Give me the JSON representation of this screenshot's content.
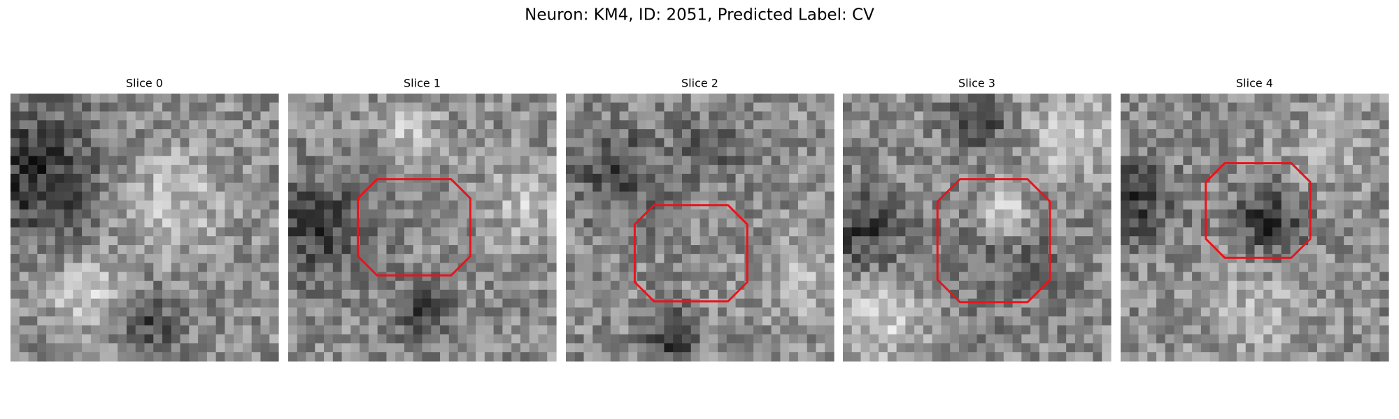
{
  "title": "Neuron: KM4, ID: 2051, Predicted Label: CV",
  "panels": [
    {
      "title": "Slice 0"
    },
    {
      "title": "Slice 1"
    },
    {
      "title": "Slice 2"
    },
    {
      "title": "Slice 3"
    },
    {
      "title": "Slice 4"
    }
  ]
}
